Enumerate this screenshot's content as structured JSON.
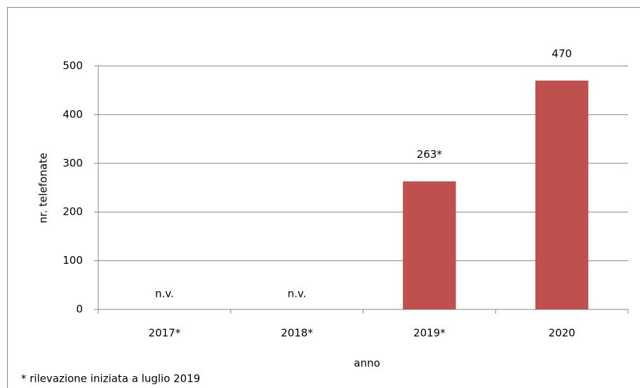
{
  "chart_data": {
    "type": "bar",
    "categories": [
      "2017*",
      "2018*",
      "2019*",
      "2020"
    ],
    "values": [
      null,
      null,
      263,
      470
    ],
    "value_labels": [
      "n.v.",
      "n.v.",
      "263*",
      "470"
    ],
    "color": "#c0504d",
    "ylim": [
      0,
      500
    ],
    "yticks": [
      0,
      100,
      200,
      300,
      400,
      500
    ],
    "grid": true,
    "y_label": "nr. telefonate",
    "x_label": "anno",
    "footnote": "* rilevazione iniziata a luglio 2019"
  }
}
